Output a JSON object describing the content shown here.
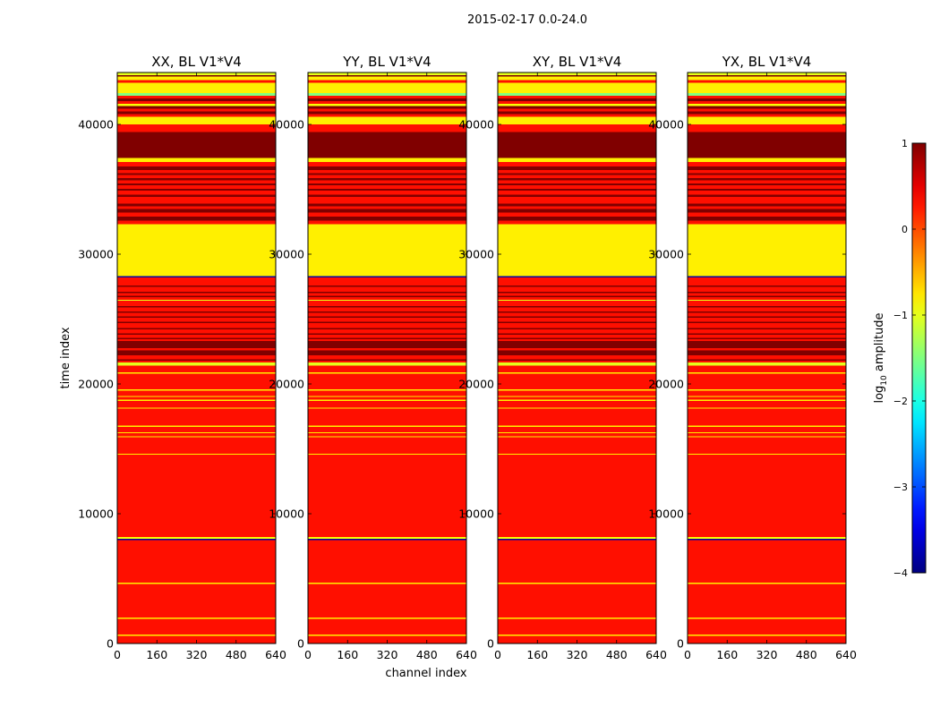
{
  "chart_data": {
    "type": "heatmap",
    "suptitle": "2015-02-17 0.0-24.0",
    "xlabel": "channel index",
    "ylabel": "time index",
    "xlim": [
      0,
      640
    ],
    "ylim": [
      0,
      44000
    ],
    "x_ticks": [
      "0",
      "160",
      "320",
      "480",
      "640"
    ],
    "y_ticks": [
      "0",
      "10000",
      "20000",
      "30000",
      "40000"
    ],
    "panels": [
      {
        "title": "XX, BL V1*V4"
      },
      {
        "title": "YY, BL V1*V4"
      },
      {
        "title": "XY, BL V1*V4"
      },
      {
        "title": "YX, BL V1*V4"
      }
    ],
    "colorbar": {
      "label": "log10 amplitude",
      "range": [
        -4,
        1
      ],
      "ticks": [
        "1",
        "0",
        "−1",
        "−2",
        "−3",
        "−4"
      ],
      "colormap": "jet"
    },
    "rows": [
      {
        "from": 0,
        "to": 600,
        "value": 0.3
      },
      {
        "from": 600,
        "to": 680,
        "value": -0.8
      },
      {
        "from": 680,
        "to": 1900,
        "value": 0.3
      },
      {
        "from": 1900,
        "to": 1990,
        "value": -0.8
      },
      {
        "from": 1990,
        "to": 4600,
        "value": 0.3
      },
      {
        "from": 4600,
        "to": 4680,
        "value": -0.8
      },
      {
        "from": 4680,
        "to": 7950,
        "value": 0.3
      },
      {
        "from": 7950,
        "to": 8080,
        "value": -3.8
      },
      {
        "from": 8080,
        "to": 8200,
        "value": -0.9
      },
      {
        "from": 8200,
        "to": 14550,
        "value": 0.3
      },
      {
        "from": 14550,
        "to": 14630,
        "value": -0.8
      },
      {
        "from": 14630,
        "to": 15900,
        "value": 0.3
      },
      {
        "from": 15900,
        "to": 15980,
        "value": -0.8
      },
      {
        "from": 15980,
        "to": 16200,
        "value": 0.3
      },
      {
        "from": 16200,
        "to": 16280,
        "value": -0.8
      },
      {
        "from": 16280,
        "to": 16700,
        "value": 0.3
      },
      {
        "from": 16700,
        "to": 16780,
        "value": -0.8
      },
      {
        "from": 16780,
        "to": 18100,
        "value": 0.3
      },
      {
        "from": 18100,
        "to": 18180,
        "value": -0.8
      },
      {
        "from": 18180,
        "to": 18700,
        "value": 0.3
      },
      {
        "from": 18700,
        "to": 18780,
        "value": -0.8
      },
      {
        "from": 18780,
        "to": 19000,
        "value": 0.3
      },
      {
        "from": 19000,
        "to": 19080,
        "value": -0.8
      },
      {
        "from": 19080,
        "to": 19500,
        "value": 0.3
      },
      {
        "from": 19500,
        "to": 19580,
        "value": -0.8
      },
      {
        "from": 19580,
        "to": 20800,
        "value": 0.3
      },
      {
        "from": 20800,
        "to": 20880,
        "value": -0.8
      },
      {
        "from": 20880,
        "to": 21400,
        "value": 0.3
      },
      {
        "from": 21400,
        "to": 21650,
        "value": -1.0
      },
      {
        "from": 21650,
        "to": 21800,
        "value": 0.3
      },
      {
        "from": 21800,
        "to": 21900,
        "value": 1.0
      },
      {
        "from": 21900,
        "to": 22200,
        "value": 0.3
      },
      {
        "from": 22200,
        "to": 22600,
        "value": 1.0
      },
      {
        "from": 22600,
        "to": 22750,
        "value": 0.3
      },
      {
        "from": 22750,
        "to": 23300,
        "value": 1.0
      },
      {
        "from": 23300,
        "to": 23450,
        "value": 0.3
      },
      {
        "from": 23450,
        "to": 23550,
        "value": 1.0
      },
      {
        "from": 23550,
        "to": 23800,
        "value": 0.3
      },
      {
        "from": 23800,
        "to": 23900,
        "value": 1.0
      },
      {
        "from": 23900,
        "to": 24200,
        "value": 0.3
      },
      {
        "from": 24200,
        "to": 24300,
        "value": 1.0
      },
      {
        "from": 24300,
        "to": 24700,
        "value": 0.3
      },
      {
        "from": 24700,
        "to": 24800,
        "value": 1.0
      },
      {
        "from": 24800,
        "to": 25100,
        "value": 0.3
      },
      {
        "from": 25100,
        "to": 25200,
        "value": 1.0
      },
      {
        "from": 25200,
        "to": 25500,
        "value": 0.3
      },
      {
        "from": 25500,
        "to": 25600,
        "value": 1.0
      },
      {
        "from": 25600,
        "to": 25900,
        "value": 0.3
      },
      {
        "from": 25900,
        "to": 26000,
        "value": 1.0
      },
      {
        "from": 26000,
        "to": 26400,
        "value": 0.3
      },
      {
        "from": 26400,
        "to": 26500,
        "value": -1.0
      },
      {
        "from": 26500,
        "to": 26700,
        "value": 0.3
      },
      {
        "from": 26700,
        "to": 26800,
        "value": 1.0
      },
      {
        "from": 26800,
        "to": 27000,
        "value": 0.3
      },
      {
        "from": 27000,
        "to": 27100,
        "value": 1.0
      },
      {
        "from": 27100,
        "to": 27500,
        "value": 0.3
      },
      {
        "from": 27500,
        "to": 27600,
        "value": 1.0
      },
      {
        "from": 27600,
        "to": 28200,
        "value": 0.3
      },
      {
        "from": 28200,
        "to": 28300,
        "value": -3.8
      },
      {
        "from": 28300,
        "to": 32300,
        "value": -0.8
      },
      {
        "from": 32300,
        "to": 32600,
        "value": 0.3
      },
      {
        "from": 32600,
        "to": 32900,
        "value": 1.0
      },
      {
        "from": 32900,
        "to": 33200,
        "value": 0.3
      },
      {
        "from": 33200,
        "to": 33500,
        "value": 1.0
      },
      {
        "from": 33500,
        "to": 33700,
        "value": 0.3
      },
      {
        "from": 33700,
        "to": 33900,
        "value": 1.0
      },
      {
        "from": 33900,
        "to": 34400,
        "value": 0.3
      },
      {
        "from": 34400,
        "to": 34600,
        "value": 1.0
      },
      {
        "from": 34600,
        "to": 34900,
        "value": 0.3
      },
      {
        "from": 34900,
        "to": 35050,
        "value": 1.0
      },
      {
        "from": 35050,
        "to": 35300,
        "value": 0.3
      },
      {
        "from": 35300,
        "to": 35450,
        "value": 1.0
      },
      {
        "from": 35450,
        "to": 35700,
        "value": 0.3
      },
      {
        "from": 35700,
        "to": 35850,
        "value": 1.0
      },
      {
        "from": 35850,
        "to": 36100,
        "value": 0.3
      },
      {
        "from": 36100,
        "to": 36250,
        "value": 1.0
      },
      {
        "from": 36250,
        "to": 36500,
        "value": 0.3
      },
      {
        "from": 36500,
        "to": 36750,
        "value": 1.0
      },
      {
        "from": 36750,
        "to": 37100,
        "value": 0.3
      },
      {
        "from": 37100,
        "to": 37400,
        "value": -0.8
      },
      {
        "from": 37400,
        "to": 39400,
        "value": 1.0
      },
      {
        "from": 39400,
        "to": 40000,
        "value": 0.3
      },
      {
        "from": 40000,
        "to": 40600,
        "value": -0.8
      },
      {
        "from": 40600,
        "to": 40800,
        "value": 0.3
      },
      {
        "from": 40800,
        "to": 41000,
        "value": 1.0
      },
      {
        "from": 41000,
        "to": 41200,
        "value": 0.3
      },
      {
        "from": 41200,
        "to": 41400,
        "value": 1.0
      },
      {
        "from": 41400,
        "to": 41600,
        "value": -0.9
      },
      {
        "from": 41600,
        "to": 41800,
        "value": 0.3
      },
      {
        "from": 41800,
        "to": 42000,
        "value": 1.0
      },
      {
        "from": 42000,
        "to": 42200,
        "value": 0.3
      },
      {
        "from": 42200,
        "to": 42400,
        "value": -1.5
      },
      {
        "from": 42400,
        "to": 43200,
        "value": -0.8
      },
      {
        "from": 43200,
        "to": 43400,
        "value": 0.3
      },
      {
        "from": 43400,
        "to": 43700,
        "value": -0.8
      },
      {
        "from": 43700,
        "to": 43800,
        "value": 1.0
      },
      {
        "from": 43800,
        "to": 44000,
        "value": -1.0
      }
    ]
  }
}
